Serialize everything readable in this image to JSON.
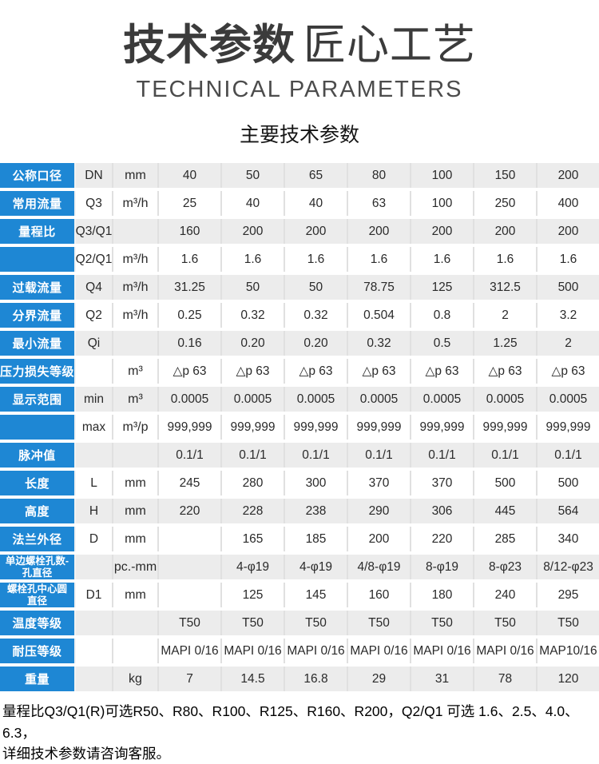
{
  "header": {
    "title_main": "技术参数",
    "title_sub": "匠心工艺",
    "subtitle_en": "TECHNICAL PARAMETERS",
    "section_title": "主要技术参数"
  },
  "table": {
    "rows": [
      {
        "label": "公称口径",
        "symbol": "DN",
        "unit": "mm",
        "values": [
          "40",
          "50",
          "65",
          "80",
          "100",
          "150",
          "200"
        ]
      },
      {
        "label": "常用流量",
        "symbol": "Q3",
        "unit": "m³/h",
        "values": [
          "25",
          "40",
          "40",
          "63",
          "100",
          "250",
          "400"
        ]
      },
      {
        "label": "量程比",
        "symbol": "Q3/Q1",
        "unit": "",
        "values": [
          "160",
          "200",
          "200",
          "200",
          "200",
          "200",
          "200"
        ]
      },
      {
        "label": "",
        "symbol": "Q2/Q1",
        "unit": "m³/h",
        "values": [
          "1.6",
          "1.6",
          "1.6",
          "1.6",
          "1.6",
          "1.6",
          "1.6"
        ]
      },
      {
        "label": "过载流量",
        "symbol": "Q4",
        "unit": "m³/h",
        "values": [
          "31.25",
          "50",
          "50",
          "78.75",
          "125",
          "312.5",
          "500"
        ]
      },
      {
        "label": "分界流量",
        "symbol": "Q2",
        "unit": "m³/h",
        "values": [
          "0.25",
          "0.32",
          "0.32",
          "0.504",
          "0.8",
          "2",
          "3.2"
        ]
      },
      {
        "label": "最小流量",
        "symbol": "Qi",
        "unit": "",
        "values": [
          "0.16",
          "0.20",
          "0.20",
          "0.32",
          "0.5",
          "1.25",
          "2"
        ]
      },
      {
        "label": "压力损失等级",
        "symbol": "",
        "unit": "m³",
        "values": [
          "△p 63",
          "△p 63",
          "△p 63",
          "△p 63",
          "△p 63",
          "△p 63",
          "△p 63"
        ]
      },
      {
        "label": "显示范围",
        "symbol": "min",
        "unit": "m³",
        "values": [
          "0.0005",
          "0.0005",
          "0.0005",
          "0.0005",
          "0.0005",
          "0.0005",
          "0.0005"
        ]
      },
      {
        "label": "",
        "symbol": "max",
        "unit": "m³/p",
        "values": [
          "999,999",
          "999,999",
          "999,999",
          "999,999",
          "999,999",
          "999,999",
          "999,999"
        ]
      },
      {
        "label": "脉冲值",
        "symbol": "",
        "unit": "",
        "values": [
          "0.1/1",
          "0.1/1",
          "0.1/1",
          "0.1/1",
          "0.1/1",
          "0.1/1",
          "0.1/1"
        ]
      },
      {
        "label": "长度",
        "symbol": "L",
        "unit": "mm",
        "values": [
          "245",
          "280",
          "300",
          "370",
          "370",
          "500",
          "500"
        ]
      },
      {
        "label": "高度",
        "symbol": "H",
        "unit": "mm",
        "values": [
          "220",
          "228",
          "238",
          "290",
          "306",
          "445",
          "564"
        ]
      },
      {
        "label": "法兰外径",
        "symbol": "D",
        "unit": "mm",
        "values": [
          "",
          "165",
          "185",
          "200",
          "220",
          "285",
          "340"
        ]
      },
      {
        "label": "单边螺栓孔数-\n孔直径",
        "symbol": "",
        "unit": "pc.-mm",
        "values": [
          "",
          "4-φ19",
          "4-φ19",
          "4/8-φ19",
          "8-φ19",
          "8-φ23",
          "8/12-φ23"
        ]
      },
      {
        "label": "螺栓孔中心圆\n直径",
        "symbol": "D1",
        "unit": "mm",
        "values": [
          "",
          "125",
          "145",
          "160",
          "180",
          "240",
          "295"
        ]
      },
      {
        "label": "温度等级",
        "symbol": "",
        "unit": "",
        "values": [
          "T50",
          "T50",
          "T50",
          "T50",
          "T50",
          "T50",
          "T50"
        ]
      },
      {
        "label": "耐压等级",
        "symbol": "",
        "unit": "",
        "values": [
          "MAPI 0/16",
          "MAPI 0/16",
          "MAPI 0/16",
          "MAPI 0/16",
          "MAPI 0/16",
          "MAPI 0/16",
          "MAP10/16"
        ]
      },
      {
        "label": "重量",
        "symbol": "",
        "unit": "kg",
        "values": [
          "7",
          "14.5",
          "16.8",
          "29",
          "31",
          "78",
          "120"
        ]
      }
    ]
  },
  "footer": {
    "line1": "量程比Q3/Q1(R)可选R50、R80、R100、R125、R160、R200，Q2/Q1 可选 1.6、2.5、4.0、6.3，",
    "line2": "详细技术参数请咨询客服。"
  },
  "colors": {
    "accent_blue": "#1e87d4",
    "row_gray": "#ececec",
    "separator": "#e0e0e0"
  }
}
